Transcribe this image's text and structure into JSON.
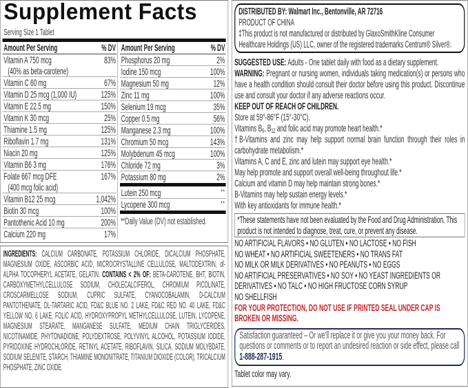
{
  "facts": {
    "title": "Supplement Facts",
    "serving_size": "Serving Size 1 Tablet",
    "header_amount": "Amount Per Serving",
    "header_dv": "% DV",
    "left_rows": [
      {
        "name": "Vitamin A 750 mcg",
        "name2": "(40% as beta-carotene)",
        "dv": "83%"
      },
      {
        "name": "Vitamin C 60 mg",
        "dv": "67%"
      },
      {
        "name": "Vitamin D 25 mcg (1,000 IU)",
        "dv": "125%"
      },
      {
        "name": "Vitamin E 22.5 mg",
        "dv": "150%"
      },
      {
        "name": "Vitamin K 30 mcg",
        "dv": "25%"
      },
      {
        "name": "Thiamine 1.5 mg",
        "dv": "125%"
      },
      {
        "name": "Riboflavin 1.7 mg",
        "dv": "131%"
      },
      {
        "name": "Niacin 20 mg",
        "dv": "125%"
      },
      {
        "name": "Vitamin B6 3 mg",
        "dv": "176%"
      },
      {
        "name": "Folate 667 mcg DFE",
        "name2": "(400 mcg folic acid)",
        "dv": "167%"
      },
      {
        "name": "Vitamin B12 25 mcg",
        "dv": "1,042%"
      },
      {
        "name": "Biotin 30 mcg",
        "dv": "100%"
      },
      {
        "name": "Pantothenic Acid 10 mg",
        "dv": "200%"
      },
      {
        "name": "Calcium 220 mg",
        "dv": "17%"
      }
    ],
    "right_rows": [
      {
        "name": "Phosphorus 20 mg",
        "dv": "2%"
      },
      {
        "name": "Iodine 150 mcg",
        "dv": "100%"
      },
      {
        "name": "Magnesium 50 mg",
        "dv": "12%"
      },
      {
        "name": "Zinc 11 mg",
        "dv": "100%"
      },
      {
        "name": "Selenium 19 mcg",
        "dv": "35%"
      },
      {
        "name": "Copper 0.5 mg",
        "dv": "56%"
      },
      {
        "name": "Manganese 2.3 mg",
        "dv": "100%"
      },
      {
        "name": "Chromium 50 mcg",
        "dv": "143%"
      },
      {
        "name": "Molybdenum 45 mcg",
        "dv": "100%"
      },
      {
        "name": "Chloride 72 mg",
        "dv": "3%"
      },
      {
        "name": "Potassium 80 mg",
        "dv": "2%"
      }
    ],
    "other_rows": [
      {
        "name": "Lutein 250 mcg",
        "dv": "**"
      },
      {
        "name": "Lycopene 300 mcg",
        "dv": "**"
      }
    ],
    "dv_note": "**Daily Value (DV) not established."
  },
  "ingredients": {
    "label": "INGREDIENTS:",
    "part1": " CALCIUM CARBONATE, POTASSIUM CHLORIDE, DICALCIUM PHOSPHATE, MAGNESIUM OXIDE, ASCORBIC ACID, MICROCRYSTALLINE CELLULOSE, MALTODEXTRIN, ",
    "italic": "dl",
    "part2": "-ALPHA TOCOPHERYL ACETATE, GELATIN. ",
    "contains_label": "CONTAINS < 2% OF:",
    "part3": " BETA-CAROTENE, BHT, BIOTIN, CARBOXYMETHYLCELLULOSE SODIUM, CHOLECALCIFEROL, CHROMIUM PICOLINATE, CROSCARMELLOSE SODIUM, CUPRIC SULFATE, CYANOCOBALAMIN, D-CALCIUM PANTOTHENATE, DL-TARTARIC ACID, FD&C BLUE NO. 2 LAKE, FD&C RED NO. 40 LAKE, FD&C YELLOW NO. 6 LAKE, FOLIC ACID, HYDROXYPROPYL METHYLCELLULOSE, LUTEIN, LYCOPENE, MAGNESIUM STEARATE, MANGANESE SULFATE, MEDIUM CHAIN TRIGLYCERIDES, NICOTINAMIDE, PHYTONADIONE, POLYDEXTROSE, POLYVINYL ALCOHOL, POTASSIUM IODIDE, PYRIDOXINE HYDROCHLORIDE, RETINYL ACETATE, RIBOFLAVIN, SILICA, SODIUM MOLYBDATE, SODIUM SELENITE, STARCH, THIAMINE MONONITRATE, TITANIUM DIOXIDE (COLOR), TRICALCIUM PHOSPHATE, ZINC OXIDE."
  },
  "right": {
    "distributed": "DISTRIBUTED BY: Walmart Inc., Bentonville, AR 72716",
    "origin": "PRODUCT OF CHINA",
    "trademark": "‡This product is not manufactured or distributed by GlaxoSmithKline Consumer Healthcare Holdings (US) LLC, owner of the registered trademarks Centrum® Silver®.",
    "suggested_label": "SUGGESTED USE:",
    "suggested_text": " Adults - One tablet daily with food as a dietary supplement.",
    "warning_label": "WARNING:",
    "warning_text": " Pregnant or nursing women, individuals taking medication(s) or persons who have a health condition should consult their doctor before using this product. Discontinue use and consult your doctor if any adverse reactions occur.",
    "keep_out": "KEEP OUT OF REACH OF CHILDREN.",
    "store": "Store at 59°-86°F (15°-30°C).",
    "heart": {
      "a": "Vitamins B",
      "s1": "6",
      "b": ", B",
      "s2": "12",
      "c": " and folic acid may promote heart health.*"
    },
    "claims": [
      "†B-Vitamins and zinc may help support normal brain function through their roles in carbohydrate metabolism.*",
      "Vitamins A, C and E, zinc and lutein may support eye health.*",
      "May help promote and support overall well-being throughout life.*",
      "Calcium and vitamin D may help maintain strong bones.*",
      "B-Vitamins may help sustain energy levels.*",
      "With key antioxidants for immune health.*"
    ],
    "disclaimer": "*These statements have not been evaluated by the Food and Drug Administration. This product is not intended to diagnose, treat, cure, or prevent any disease.",
    "free_from": [
      "NO ARTIFICIAL FLAVORS • NO GLUTEN • NO LACTOSE • NO FISH",
      "NO WHEAT • NO ARTIFICIAL SWEETENERS • NO TRANS FAT",
      "NO MILK OR MILK DERIVATIVES • NO PEANUTS • NO EGGS",
      "NO ARTIFICIAL PRESERVATIVES • NO SOY • NO YEAST INGREDIENTS OR DERIVATIVES • NO TALC • NO HIGH FRUCTOSE CORN SYRUP",
      "NO SHELLFISH"
    ],
    "protection": "FOR YOUR PROTECTION, DO NOT USE IF PRINTED SEAL UNDER CAP IS BROKEN OR MISSING.",
    "satisfaction": "Satisfaction guaranteed – Or we'll replace it or give you your money back. For questions or comments or to report an undesired reaction or side effect, please call ",
    "phone": "1-888-287-1915",
    "satisfaction_end": ".",
    "tablet_color": "Tablet color may vary.",
    "colors": {
      "protection_red": "#c4262e",
      "satisfaction_navy": "#1d2b5a"
    }
  }
}
